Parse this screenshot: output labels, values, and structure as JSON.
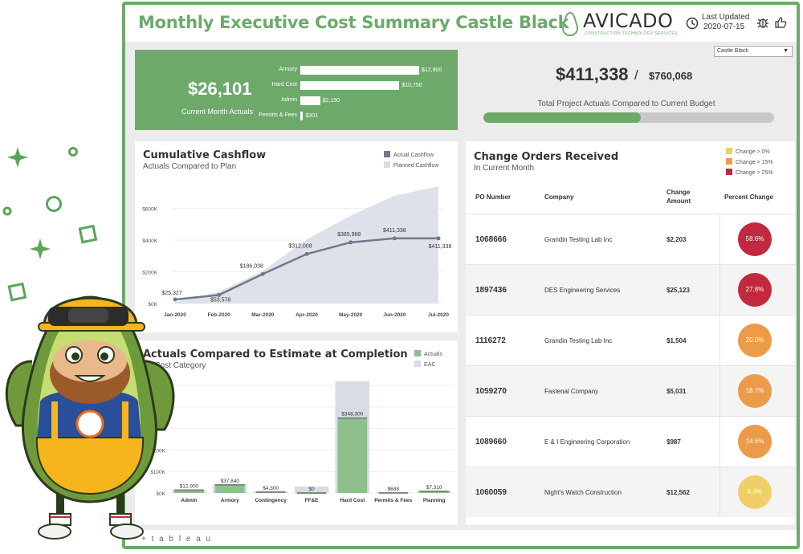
{
  "header": {
    "title": "Monthly Executive Cost Summary Castle Black",
    "logo_word": "AVICADO",
    "logo_tagline": "CONSTRUCTION TECHNOLOGY SERVICES",
    "last_updated_label": "Last Updated",
    "last_updated_date": "2020-07-15"
  },
  "kpi": {
    "current_month_actuals": "$26,101",
    "current_month_label": "Current Month Actuals",
    "bars": [
      {
        "label": "Armory",
        "value": 12900,
        "value_label": "$12,900"
      },
      {
        "label": "Hard Cost",
        "value": 10750,
        "value_label": "$10,750"
      },
      {
        "label": "Admin",
        "value": 2150,
        "value_label": "$2,150"
      },
      {
        "label": "Permits & Fees",
        "value": 301,
        "value_label": "$301"
      }
    ]
  },
  "budget": {
    "project_select": "Castle Black",
    "actuals": "$411,338",
    "slash": "/",
    "budget": "$760,068",
    "label": "Total Project Actuals Compared to Current Budget",
    "progress_fraction": 0.541
  },
  "cashflow": {
    "title": "Cumulative Cashflow",
    "subtitle": "Actuals Compared to Plan",
    "legend": [
      {
        "label": "Actual Cashflow",
        "color": "#6e7a8a"
      },
      {
        "label": "Planned Cashflow",
        "color": "#d9dbe6"
      }
    ]
  },
  "eac": {
    "title": "Actuals Compared to Estimate at Completion",
    "subtitle": "By Cost Category",
    "legend": [
      {
        "label": "Actuals",
        "color": "#8fbf8c"
      },
      {
        "label": "EAC",
        "color": "#d9dbe6"
      }
    ]
  },
  "change_orders": {
    "title": "Change Orders Received",
    "subtitle": "In Current Month",
    "legend": [
      {
        "label": "Change > 0%",
        "color": "#f0cf6a"
      },
      {
        "label": "Change > 15%",
        "color": "#ec9b48"
      },
      {
        "label": "Change > 25%",
        "color": "#c3283e"
      }
    ],
    "columns": {
      "po": "PO Number",
      "company": "Company",
      "amount_line1": "Change",
      "amount_line2": "Amount",
      "pct": "Percent Change"
    },
    "rows": [
      {
        "po": "1068666",
        "company": "Grandin Testing Lab Inc",
        "amount": "$2,203",
        "pct": "58.6%",
        "color": "#c3283e"
      },
      {
        "po": "1897436",
        "company": "DES Engineering Services",
        "amount": "$25,123",
        "pct": "27.8%",
        "color": "#c3283e"
      },
      {
        "po": "1116272",
        "company": "Grandin Testing Lab Inc",
        "amount": "$1,504",
        "pct": "20.0%",
        "color": "#ec9b48"
      },
      {
        "po": "1059270",
        "company": "Fastenal Company",
        "amount": "$5,031",
        "pct": "18.7%",
        "color": "#ec9b48"
      },
      {
        "po": "1089660",
        "company": "E & I Engineering Corporation",
        "amount": "$987",
        "pct": "14.6%",
        "color": "#ec9b48"
      },
      {
        "po": "1060059",
        "company": "Night's Watch Construction",
        "amount": "$12,562",
        "pct": "5.6%",
        "color": "#f0cf6a"
      }
    ]
  },
  "footer": {
    "brand": "+ t a b l e a u"
  },
  "chart_data": [
    {
      "type": "area",
      "title": "Cumulative Cashflow",
      "subtitle": "Actuals Compared to Plan",
      "categories": [
        "Jan-2020",
        "Feb-2020",
        "Mar-2020",
        "Apr-2020",
        "May-2020",
        "Jun-2020",
        "Jul-2020"
      ],
      "yticks": [
        "$0K",
        "$200K",
        "$400K",
        "$600K"
      ],
      "ylim": [
        0,
        760000
      ],
      "series": [
        {
          "name": "Actual Cashflow",
          "values": [
            25327,
            53578,
            186038,
            312008,
            385968,
            411338,
            411338
          ],
          "labels": [
            "$25,327",
            "$53,578",
            "$186,038",
            "$312,008",
            "$385,968",
            "$411,338",
            "$411,338"
          ]
        },
        {
          "name": "Planned Cashflow",
          "values": [
            10000,
            75000,
            205000,
            405000,
            555000,
            680000,
            740000
          ]
        }
      ]
    },
    {
      "type": "bar",
      "title": "Actuals Compared to Estimate at Completion",
      "subtitle": "By Cost Category",
      "categories": [
        "Admin",
        "Armory",
        "Contingency",
        "FF&E",
        "Hard Cost",
        "Permits & Fees",
        "Planning"
      ],
      "yticks": [
        "$0K",
        "$100K",
        "$200K",
        "$300K",
        "$400K",
        "$500K"
      ],
      "ylim": [
        0,
        560000
      ],
      "series": [
        {
          "name": "Actuals",
          "values": [
            12900,
            37840,
            4300,
            0,
            348300,
            688,
            7310
          ],
          "labels": [
            "$12,900",
            "$37,840",
            "$4,300",
            "$0",
            "$348,300",
            "$688",
            "$7,310"
          ]
        },
        {
          "name": "EAC",
          "values": [
            14000,
            42000,
            7000,
            30000,
            520000,
            4000,
            11000
          ]
        }
      ]
    }
  ]
}
